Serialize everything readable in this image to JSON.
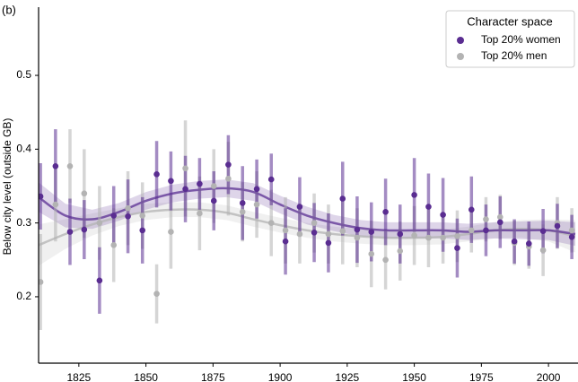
{
  "chart_data": {
    "type": "scatter",
    "panel_label": "(b)",
    "y_label": "Below city level (outside GB)",
    "legend_title": "Character space",
    "legend": "upper right",
    "xlim": [
      1810,
      2011
    ],
    "ylim": [
      0.11,
      0.59
    ],
    "xticks": [
      1825,
      1850,
      1875,
      1900,
      1925,
      1950,
      1975,
      2000
    ],
    "yticks": [
      0.2,
      0.3,
      0.4,
      0.5
    ],
    "x": [
      1810.7,
      1816.3,
      1821.7,
      1827,
      1832.7,
      1838,
      1843.3,
      1848.7,
      1854,
      1859.3,
      1864.7,
      1870,
      1875.3,
      1880.7,
      1886,
      1891.3,
      1896.7,
      1902,
      1907.3,
      1912.7,
      1918,
      1923.3,
      1928.7,
      1934,
      1939.3,
      1944.7,
      1950,
      1955.3,
      1960.7,
      1966,
      1971.3,
      1976.7,
      1982,
      1987.3,
      1992.7,
      1998,
      2003.3,
      2008.7
    ],
    "fit_x": [
      1810,
      1820,
      1830,
      1840,
      1850,
      1860,
      1870,
      1880,
      1890,
      1900,
      1910,
      1920,
      1930,
      1940,
      1950,
      1960,
      1970,
      1980,
      1990,
      2000,
      2010
    ],
    "series": [
      {
        "name": "Top 20% men",
        "color": "#b3b3b3",
        "values": [
          0.22,
          0.325,
          0.377,
          0.34,
          0.3,
          0.27,
          0.32,
          0.31,
          0.204,
          0.288,
          0.374,
          0.313,
          0.35,
          0.36,
          0.315,
          0.325,
          0.3,
          0.29,
          0.285,
          0.3,
          0.285,
          0.289,
          0.28,
          0.258,
          0.25,
          0.262,
          0.283,
          0.28,
          0.28,
          0.282,
          0.29,
          0.305,
          0.308,
          0.273,
          0.268,
          0.263,
          0.3,
          0.29
        ],
        "errors": [
          0.065,
          0.05,
          0.05,
          0.06,
          0.05,
          0.05,
          0.05,
          0.045,
          0.04,
          0.05,
          0.065,
          0.05,
          0.05,
          0.05,
          0.04,
          0.045,
          0.045,
          0.045,
          0.04,
          0.04,
          0.04,
          0.045,
          0.04,
          0.045,
          0.04,
          0.04,
          0.04,
          0.04,
          0.035,
          0.035,
          0.03,
          0.03,
          0.03,
          0.03,
          0.03,
          0.035,
          0.035,
          0.03
        ],
        "fit": [
          0.27,
          0.285,
          0.298,
          0.308,
          0.315,
          0.318,
          0.318,
          0.314,
          0.305,
          0.297,
          0.29,
          0.285,
          0.282,
          0.28,
          0.28,
          0.281,
          0.285,
          0.29,
          0.292,
          0.29,
          0.282
        ],
        "fit_lower": [
          0.242,
          0.265,
          0.283,
          0.296,
          0.304,
          0.308,
          0.308,
          0.304,
          0.295,
          0.287,
          0.28,
          0.275,
          0.272,
          0.27,
          0.27,
          0.271,
          0.275,
          0.279,
          0.28,
          0.275,
          0.26
        ],
        "fit_upper": [
          0.298,
          0.305,
          0.313,
          0.32,
          0.326,
          0.328,
          0.328,
          0.324,
          0.315,
          0.307,
          0.3,
          0.295,
          0.292,
          0.29,
          0.29,
          0.291,
          0.295,
          0.301,
          0.304,
          0.305,
          0.304
        ]
      },
      {
        "name": "Top 20% women",
        "color": "#5a2d91",
        "values": [
          0.336,
          0.377,
          0.288,
          0.291,
          0.222,
          0.31,
          0.309,
          0.29,
          0.366,
          0.357,
          0.346,
          0.353,
          0.33,
          0.379,
          0.327,
          0.346,
          0.359,
          0.275,
          0.322,
          0.287,
          0.273,
          0.333,
          0.291,
          0.288,
          0.315,
          0.285,
          0.338,
          0.322,
          0.311,
          0.266,
          0.318,
          0.29,
          0.301,
          0.275,
          0.272,
          0.289,
          0.296,
          0.281
        ],
        "errors": [
          0.045,
          0.05,
          0.045,
          0.04,
          0.045,
          0.04,
          0.05,
          0.045,
          0.045,
          0.04,
          0.045,
          0.035,
          0.04,
          0.04,
          0.05,
          0.04,
          0.035,
          0.045,
          0.04,
          0.04,
          0.04,
          0.05,
          0.045,
          0.04,
          0.045,
          0.04,
          0.05,
          0.045,
          0.05,
          0.04,
          0.045,
          0.035,
          0.035,
          0.03,
          0.03,
          0.03,
          0.03,
          0.03
        ],
        "fit": [
          0.335,
          0.31,
          0.305,
          0.315,
          0.33,
          0.34,
          0.345,
          0.347,
          0.342,
          0.325,
          0.31,
          0.3,
          0.293,
          0.29,
          0.29,
          0.29,
          0.288,
          0.29,
          0.29,
          0.29,
          0.285
        ],
        "fit_lower": [
          0.315,
          0.294,
          0.292,
          0.303,
          0.318,
          0.328,
          0.333,
          0.335,
          0.33,
          0.313,
          0.298,
          0.289,
          0.282,
          0.279,
          0.279,
          0.279,
          0.277,
          0.279,
          0.278,
          0.277,
          0.269
        ],
        "fit_upper": [
          0.355,
          0.326,
          0.318,
          0.327,
          0.342,
          0.352,
          0.357,
          0.359,
          0.354,
          0.337,
          0.322,
          0.311,
          0.304,
          0.301,
          0.301,
          0.301,
          0.299,
          0.301,
          0.302,
          0.303,
          0.301
        ]
      }
    ]
  }
}
